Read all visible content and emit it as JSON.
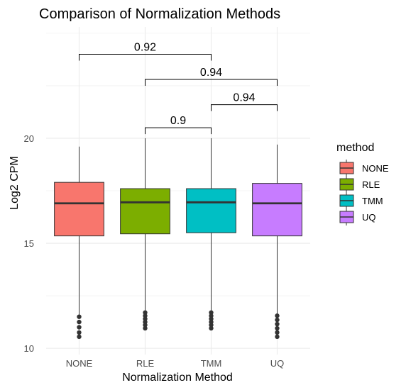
{
  "chart_data": {
    "type": "box",
    "title": "Comparison of Normalization Methods",
    "xlabel": "Normalization Method",
    "ylabel": "Log2 CPM",
    "categories": [
      "NONE",
      "RLE",
      "TMM",
      "UQ"
    ],
    "ylim": [
      9.7,
      25.3
    ],
    "yticks": [
      10,
      15,
      20
    ],
    "grid": true,
    "legend": {
      "title": "method",
      "placement": "right",
      "entries": [
        "NONE",
        "RLE",
        "TMM",
        "UQ"
      ]
    },
    "colors": [
      "#F8766D",
      "#7CAE00",
      "#00BFC4",
      "#C77CFF"
    ],
    "series": [
      {
        "category": "NONE",
        "whisker_low": 11.5,
        "q1": 15.35,
        "median": 16.9,
        "q3": 17.9,
        "whisker_high": 19.6,
        "outliers": [
          11.5,
          11.25,
          11.0,
          10.75,
          10.55
        ]
      },
      {
        "category": "RLE",
        "whisker_low": 11.7,
        "q1": 15.45,
        "median": 16.95,
        "q3": 17.6,
        "whisker_high": 20.0,
        "outliers": [
          11.7,
          11.55,
          11.4,
          11.25,
          11.1,
          10.95
        ]
      },
      {
        "category": "TMM",
        "whisker_low": 11.7,
        "q1": 15.5,
        "median": 16.95,
        "q3": 17.6,
        "whisker_high": 20.0,
        "outliers": [
          11.7,
          11.55,
          11.4,
          11.25,
          11.1,
          10.95
        ]
      },
      {
        "category": "UQ",
        "whisker_low": 11.55,
        "q1": 15.35,
        "median": 16.9,
        "q3": 17.85,
        "whisker_high": 19.7,
        "outliers": [
          11.55,
          11.35,
          11.15,
          10.95,
          10.75,
          10.55
        ]
      }
    ],
    "comparisons": [
      {
        "from": "NONE",
        "to": "TMM",
        "y": 24.0,
        "label": "0.92"
      },
      {
        "from": "RLE",
        "to": "UQ",
        "y": 22.8,
        "label": "0.94"
      },
      {
        "from": "TMM",
        "to": "UQ",
        "y": 21.6,
        "label": "0.94"
      },
      {
        "from": "RLE",
        "to": "TMM",
        "y": 20.5,
        "label": "0.9"
      }
    ]
  }
}
